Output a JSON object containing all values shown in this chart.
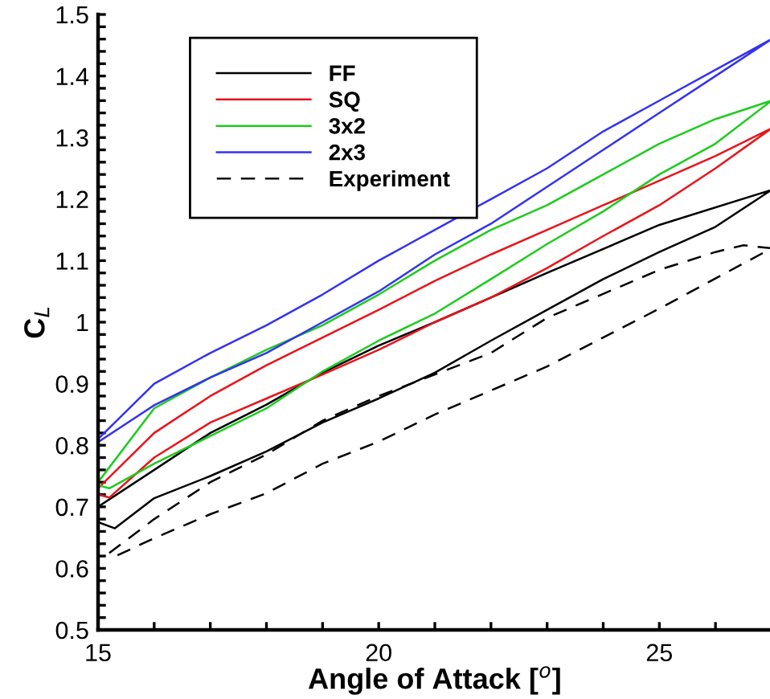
{
  "chart_data": {
    "type": "line",
    "xlabel": "Angle of Attack [$^{o}$]",
    "ylabel": "C$_{L}$",
    "xlim": [
      15,
      27
    ],
    "ylim": [
      0.5,
      1.5
    ],
    "xticks": [
      15,
      {
        "value": 16,
        "label": null
      },
      {
        "value": 17,
        "label": null
      },
      {
        "value": 18,
        "label": null
      },
      {
        "value": 19,
        "label": null
      },
      20,
      {
        "value": 21,
        "label": null
      },
      {
        "value": 22,
        "label": null
      },
      {
        "value": 23,
        "label": null
      },
      {
        "value": 24,
        "label": null
      },
      25,
      {
        "value": 26,
        "label": null
      }
    ],
    "yticks": [
      0.5,
      {
        "value": 0.52,
        "label": null
      },
      {
        "value": 0.54,
        "label": null
      },
      {
        "value": 0.56,
        "label": null
      },
      {
        "value": 0.58,
        "label": null
      },
      0.6,
      {
        "value": 0.62,
        "label": null
      },
      {
        "value": 0.64,
        "label": null
      },
      {
        "value": 0.66,
        "label": null
      },
      {
        "value": 0.68,
        "label": null
      },
      0.7,
      {
        "value": 0.72,
        "label": null
      },
      {
        "value": 0.74,
        "label": null
      },
      {
        "value": 0.76,
        "label": null
      },
      {
        "value": 0.78,
        "label": null
      },
      0.8,
      {
        "value": 0.82,
        "label": null
      },
      {
        "value": 0.84,
        "label": null
      },
      {
        "value": 0.86,
        "label": null
      },
      {
        "value": 0.88,
        "label": null
      },
      0.9,
      {
        "value": 0.92,
        "label": null
      },
      {
        "value": 0.94,
        "label": null
      },
      {
        "value": 0.96,
        "label": null
      },
      {
        "value": 0.98,
        "label": null
      },
      1,
      {
        "value": 1.02,
        "label": null
      },
      {
        "value": 1.04,
        "label": null
      },
      {
        "value": 1.06,
        "label": null
      },
      {
        "value": 1.08,
        "label": null
      },
      1.1,
      {
        "value": 1.12,
        "label": null
      },
      {
        "value": 1.14,
        "label": null
      },
      {
        "value": 1.16,
        "label": null
      },
      {
        "value": 1.18,
        "label": null
      },
      1.2,
      {
        "value": 1.22,
        "label": null
      },
      {
        "value": 1.24,
        "label": null
      },
      {
        "value": 1.26,
        "label": null
      },
      {
        "value": 1.28,
        "label": null
      },
      1.3,
      {
        "value": 1.32,
        "label": null
      },
      {
        "value": 1.34,
        "label": null
      },
      {
        "value": 1.36,
        "label": null
      },
      {
        "value": 1.38,
        "label": null
      },
      1.4,
      {
        "value": 1.42,
        "label": null
      },
      {
        "value": 1.44,
        "label": null
      },
      {
        "value": 1.46,
        "label": null
      },
      {
        "value": 1.48,
        "label": null
      },
      1.5
    ],
    "grid": false,
    "legend": "top left",
    "marker": "none",
    "series": [
      {
        "name": "FF",
        "color": "#000000",
        "line_style": "solid",
        "x": [
          15,
          16,
          17,
          18,
          19,
          20,
          21,
          23,
          25,
          27,
          26,
          25,
          24,
          23,
          22,
          21,
          20,
          19,
          18,
          17,
          16,
          15.3,
          15
        ],
        "values": [
          0.7,
          0.76,
          0.82,
          0.866,
          0.918,
          0.962,
          1.0,
          1.08,
          1.158,
          1.215,
          1.155,
          1.114,
          1.07,
          1.02,
          0.97,
          0.918,
          0.876,
          0.837,
          0.79,
          0.75,
          0.714,
          0.665,
          0.675
        ]
      },
      {
        "name": "SQ",
        "color": "#e8141a",
        "line_style": "solid",
        "x": [
          15,
          16,
          17,
          18,
          19,
          20,
          21,
          22,
          23,
          24,
          25,
          26,
          27,
          26,
          25,
          24,
          23,
          22,
          21,
          20,
          19,
          18,
          17,
          16,
          15.2,
          15
        ],
        "values": [
          0.73,
          0.82,
          0.88,
          0.93,
          0.975,
          1.02,
          1.067,
          1.11,
          1.15,
          1.19,
          1.23,
          1.27,
          1.315,
          1.25,
          1.19,
          1.14,
          1.088,
          1.04,
          1.0,
          0.955,
          0.915,
          0.876,
          0.837,
          0.78,
          0.715,
          0.72
        ]
      },
      {
        "name": "3x2",
        "color": "#1ecb1e",
        "line_style": "solid",
        "x": [
          15,
          16,
          17,
          18,
          19,
          20,
          21,
          22,
          23,
          24,
          25,
          26,
          27,
          26,
          25,
          24,
          23,
          22,
          21,
          20,
          19,
          18,
          17,
          16,
          15.2,
          15
        ],
        "values": [
          0.74,
          0.86,
          0.91,
          0.955,
          0.995,
          1.045,
          1.1,
          1.15,
          1.19,
          1.24,
          1.29,
          1.33,
          1.36,
          1.29,
          1.24,
          1.18,
          1.127,
          1.07,
          1.014,
          0.97,
          0.92,
          0.86,
          0.815,
          0.77,
          0.73,
          0.735
        ]
      },
      {
        "name": "2x3",
        "color": "#3333ee",
        "line_style": "solid",
        "x": [
          15,
          16,
          17,
          18,
          19,
          20,
          21,
          22,
          23,
          24,
          25,
          26,
          27,
          26,
          25,
          24,
          23,
          22,
          21,
          20,
          19,
          18,
          17,
          16,
          15
        ],
        "values": [
          0.81,
          0.9,
          0.95,
          0.995,
          1.045,
          1.1,
          1.15,
          1.2,
          1.25,
          1.31,
          1.36,
          1.41,
          1.46,
          1.4,
          1.34,
          1.28,
          1.22,
          1.16,
          1.11,
          1.05,
          1.0,
          0.95,
          0.91,
          0.865,
          0.805
        ]
      },
      {
        "name": "Experiment",
        "color": "#000000",
        "line_style": "dashed",
        "x": [
          15.2,
          16,
          17,
          18,
          19,
          20,
          21,
          22,
          23,
          25,
          26,
          26.5,
          27,
          25,
          23,
          21,
          20,
          19,
          18,
          17,
          16,
          15.2
        ],
        "values": [
          0.625,
          0.68,
          0.74,
          0.785,
          0.84,
          0.88,
          0.915,
          0.95,
          1.007,
          1.085,
          1.114,
          1.125,
          1.12,
          1.022,
          0.928,
          0.85,
          0.806,
          0.77,
          0.722,
          0.688,
          0.649,
          0.615
        ]
      }
    ]
  }
}
